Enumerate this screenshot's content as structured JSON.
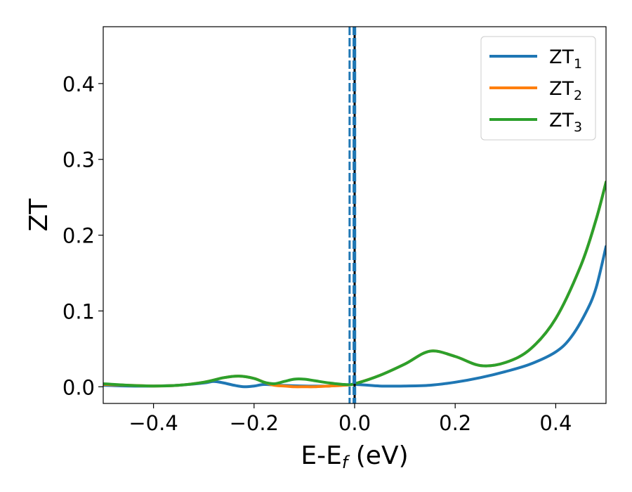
{
  "chart_data": {
    "type": "line",
    "title": "",
    "xlabel": "E-E",
    "xlabel_sub": "f",
    "xlabel_unit": " (eV)",
    "ylabel": "ZT",
    "xlim": [
      -0.5,
      0.5
    ],
    "ylim": [
      -0.022,
      0.475
    ],
    "grid": false,
    "legend_position": "top-right",
    "xticks": [
      -0.4,
      -0.2,
      0.0,
      0.2,
      0.4
    ],
    "xtick_labels": [
      "−0.4",
      "−0.2",
      "0.0",
      "0.2",
      "0.4"
    ],
    "yticks": [
      0.0,
      0.1,
      0.2,
      0.3,
      0.4
    ],
    "ytick_labels": [
      "0.0",
      "0.1",
      "0.2",
      "0.3",
      "0.4"
    ],
    "vlines": [
      {
        "x": 0.0,
        "color": "#000000",
        "style": "solid"
      },
      {
        "x": -0.01,
        "color": "#1f77b4",
        "style": "dashed"
      },
      {
        "x": -0.002,
        "color": "#1f77b4",
        "style": "dashed"
      },
      {
        "x": 0.001,
        "color": "#1f77b4",
        "style": "dashed"
      }
    ],
    "series": [
      {
        "name": "ZT",
        "sub": "1",
        "color": "#1f77b4",
        "x": [
          -0.5,
          -0.45,
          -0.4,
          -0.35,
          -0.3,
          -0.28,
          -0.26,
          -0.24,
          -0.22,
          -0.2,
          -0.18,
          -0.15,
          -0.1,
          -0.05,
          0.0,
          0.05,
          0.1,
          0.15,
          0.2,
          0.25,
          0.3,
          0.35,
          0.4,
          0.43,
          0.46,
          0.48,
          0.5
        ],
        "y": [
          0.002,
          0.001,
          0.001,
          0.002,
          0.005,
          0.007,
          0.005,
          0.002,
          0.0,
          0.001,
          0.003,
          0.002,
          0.001,
          0.001,
          0.003,
          0.001,
          0.001,
          0.002,
          0.006,
          0.012,
          0.02,
          0.03,
          0.046,
          0.065,
          0.098,
          0.13,
          0.185
        ]
      },
      {
        "name": "ZT",
        "sub": "2",
        "color": "#ff7f0e",
        "x": [
          -0.5,
          -0.45,
          -0.4,
          -0.35,
          -0.3,
          -0.26,
          -0.23,
          -0.2,
          -0.18,
          -0.16,
          -0.14,
          -0.12,
          -0.1,
          -0.08,
          -0.05,
          -0.02,
          0.0,
          0.05,
          0.1,
          0.15,
          0.2,
          0.25,
          0.3,
          0.35,
          0.4,
          0.45,
          0.48,
          0.5
        ],
        "y": [
          0.003,
          0.002,
          0.001,
          0.002,
          0.006,
          0.012,
          0.014,
          0.011,
          0.006,
          0.002,
          0.001,
          0.0,
          0.0,
          0.0,
          0.001,
          0.002,
          0.004,
          0.015,
          0.03,
          0.047,
          0.04,
          0.028,
          0.032,
          0.05,
          0.09,
          0.16,
          0.22,
          0.27
        ]
      },
      {
        "name": "ZT",
        "sub": "3",
        "color": "#2ca02c",
        "x": [
          -0.5,
          -0.45,
          -0.4,
          -0.35,
          -0.3,
          -0.26,
          -0.23,
          -0.2,
          -0.18,
          -0.16,
          -0.14,
          -0.12,
          -0.1,
          -0.08,
          -0.05,
          -0.02,
          0.0,
          0.05,
          0.1,
          0.15,
          0.2,
          0.25,
          0.3,
          0.35,
          0.4,
          0.45,
          0.48,
          0.5
        ],
        "y": [
          0.004,
          0.002,
          0.001,
          0.002,
          0.006,
          0.012,
          0.014,
          0.011,
          0.006,
          0.004,
          0.007,
          0.01,
          0.01,
          0.008,
          0.005,
          0.003,
          0.004,
          0.015,
          0.03,
          0.047,
          0.04,
          0.028,
          0.032,
          0.05,
          0.09,
          0.16,
          0.22,
          0.27
        ]
      }
    ]
  }
}
